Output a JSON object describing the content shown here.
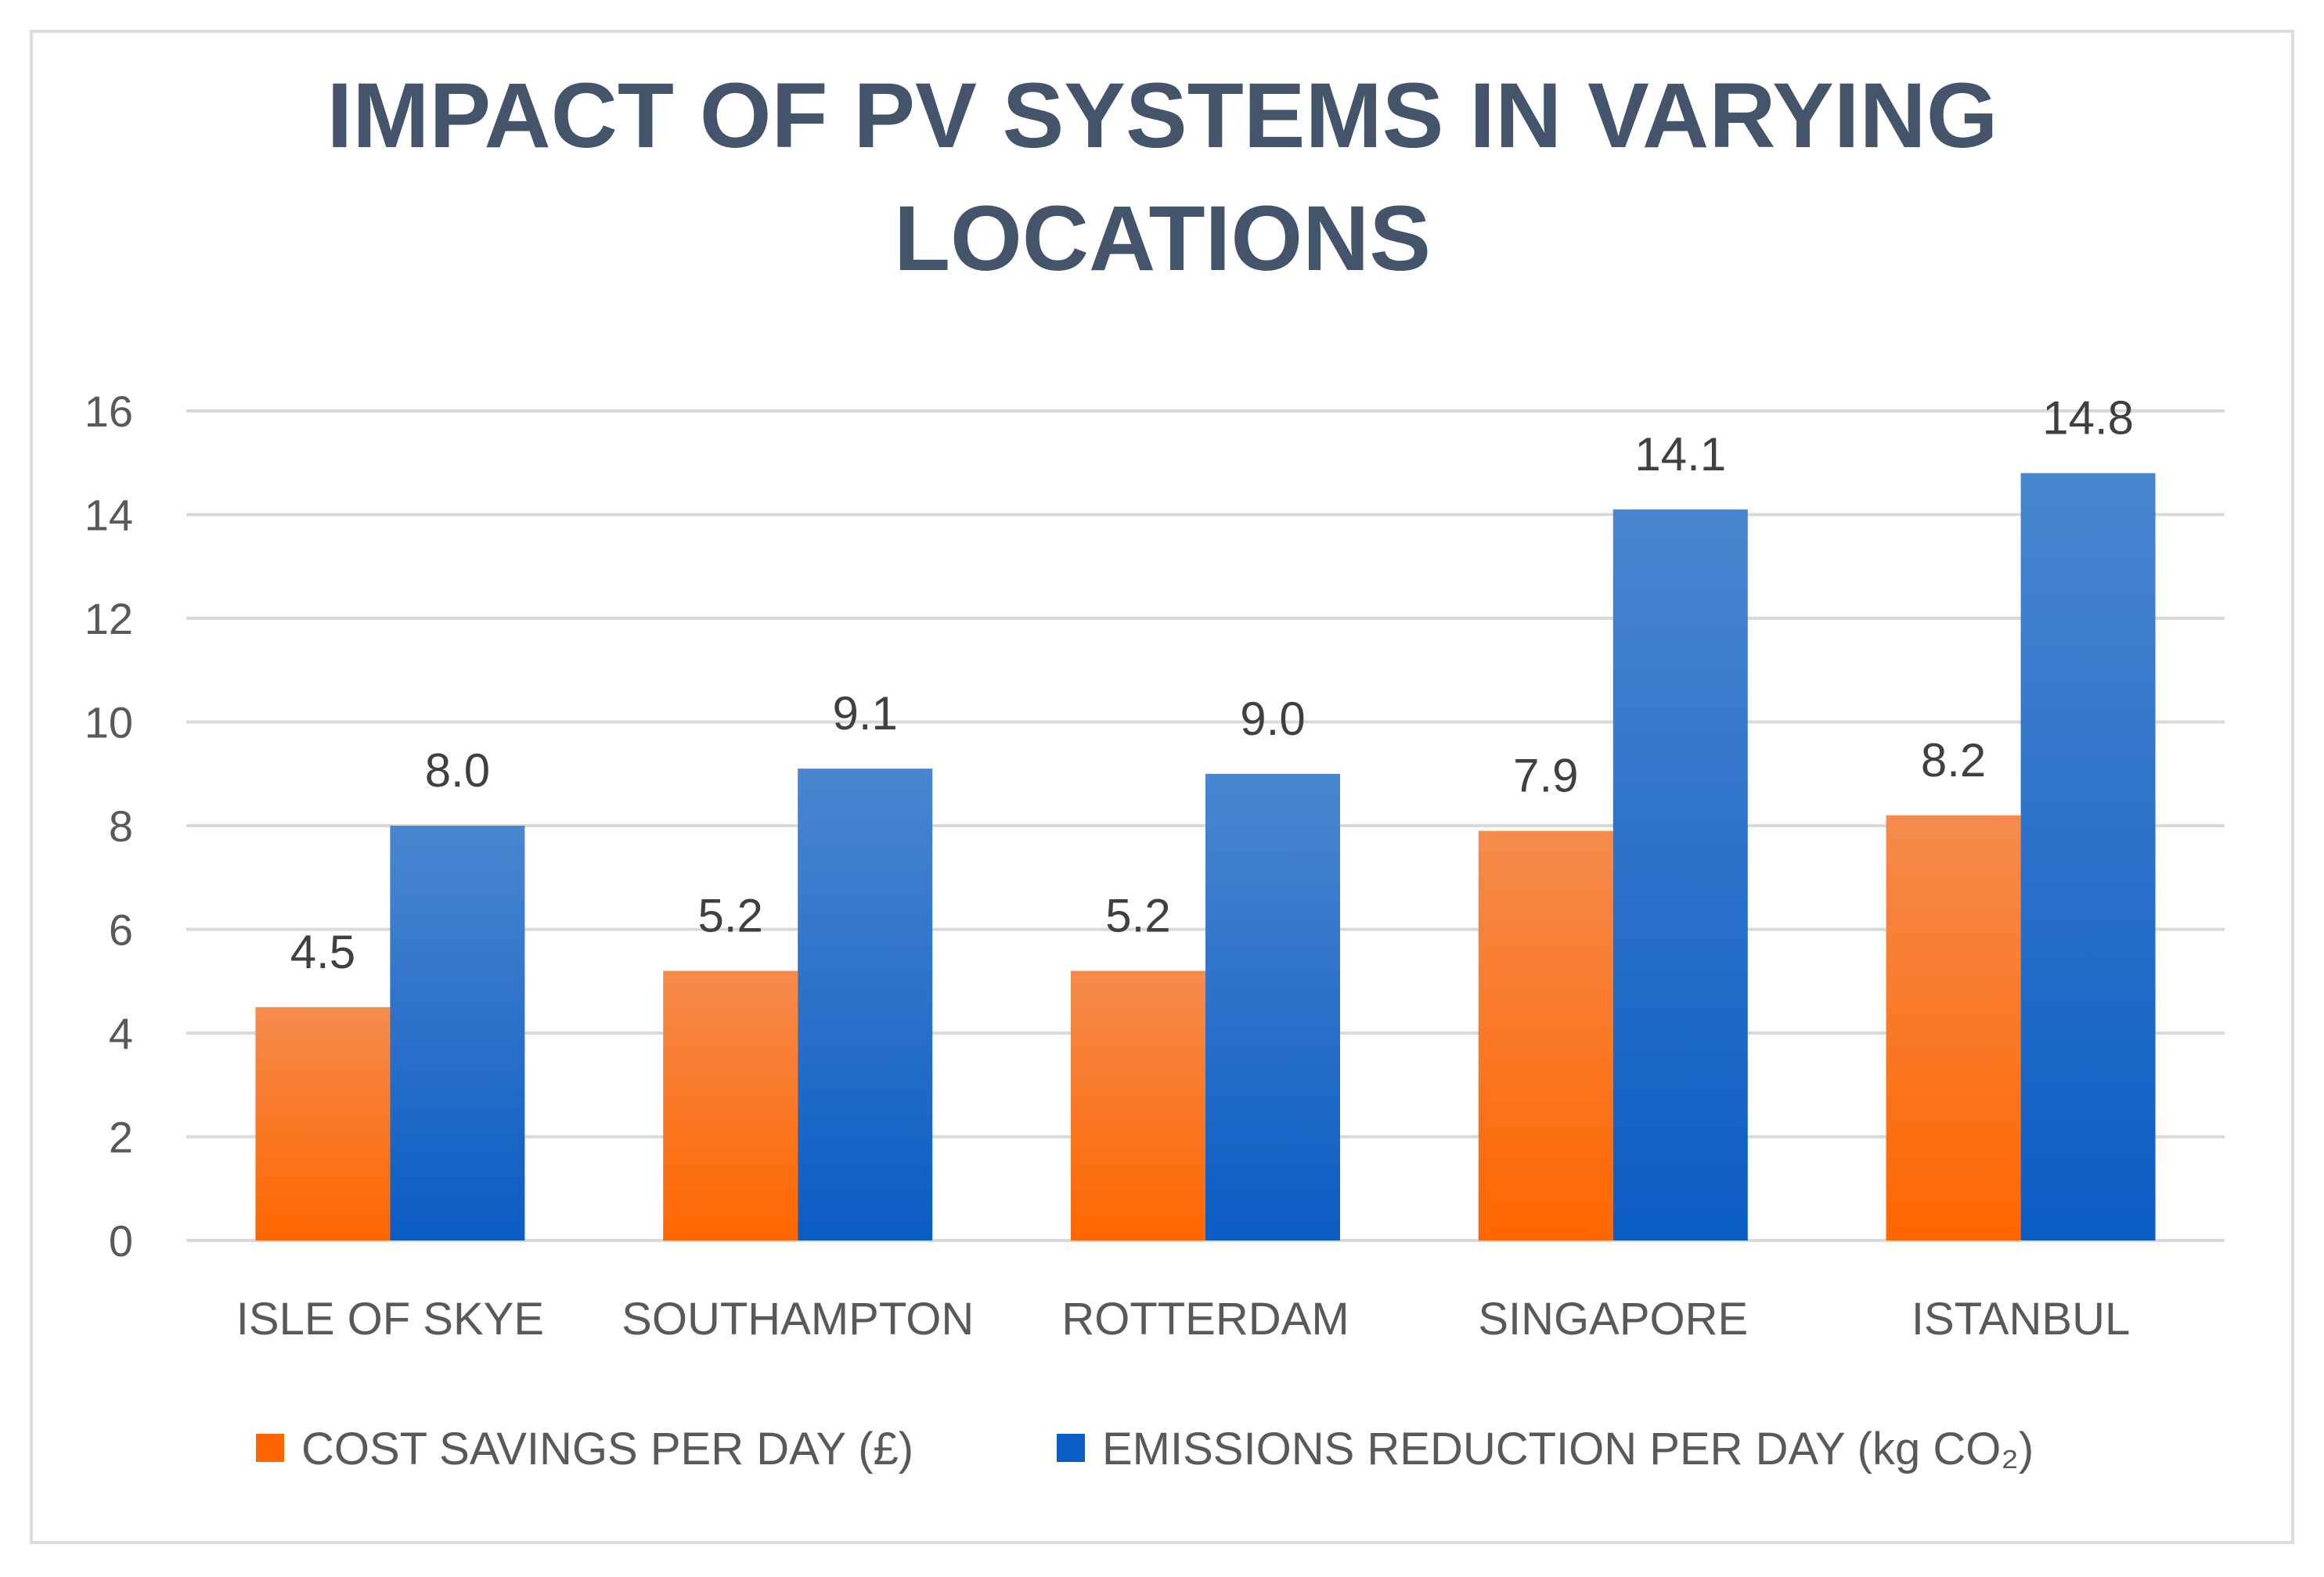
{
  "chart_data": {
    "type": "bar",
    "title_lines": [
      "IMPACT OF PV SYSTEMS IN VARYING",
      "LOCATIONS"
    ],
    "categories": [
      "ISLE OF SKYE",
      "SOUTHAMPTON",
      "ROTTERDAM",
      "SINGAPORE",
      "ISTANBUL"
    ],
    "series": [
      {
        "name": "COST SAVINGS PER DAY (£)",
        "values": [
          4.5,
          5.2,
          5.2,
          7.9,
          8.2
        ],
        "labels": [
          "4.5",
          "5.2",
          "5.2",
          "7.9",
          "8.2"
        ],
        "color_top": "#f58b4c",
        "color_bottom": "#ff6600"
      },
      {
        "name": "EMISSIONS REDUCTION PER DAY (kg CO₂)",
        "values": [
          8.0,
          9.1,
          9.0,
          14.1,
          14.8
        ],
        "labels": [
          "8.0",
          "9.1",
          "9.0",
          "14.1",
          "14.8"
        ],
        "color_top": "#4a86d0",
        "color_bottom": "#0b5cc4"
      }
    ],
    "xlabel": "",
    "ylabel": "",
    "ylim": [
      0,
      16
    ],
    "yticks": [
      0,
      2,
      4,
      6,
      8,
      10,
      12,
      14,
      16
    ],
    "grid": true,
    "legend_position": "bottom"
  }
}
